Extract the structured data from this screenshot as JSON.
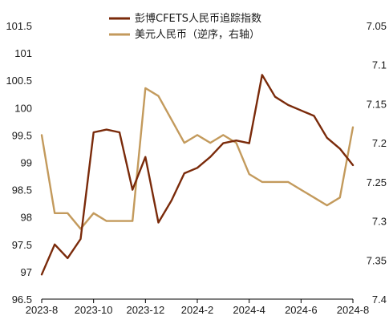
{
  "chart_data": {
    "type": "line",
    "title": "",
    "x": [
      "2023-08",
      "2023-08-15",
      "2023-09",
      "2023-09-15",
      "2023-10",
      "2023-10-15",
      "2023-11",
      "2023-11-15",
      "2023-12",
      "2023-12-15",
      "2024-01",
      "2024-01-15",
      "2024-02",
      "2024-02-15",
      "2024-03",
      "2024-03-15",
      "2024-04",
      "2024-04-15",
      "2024-05",
      "2024-05-15",
      "2024-06",
      "2024-06-15",
      "2024-07",
      "2024-07-15",
      "2024-08"
    ],
    "x_ticks": [
      "2023-8",
      "2023-10",
      "2023-12",
      "2024-2",
      "2024-4",
      "2024-6",
      "2024-8"
    ],
    "y_left": {
      "ticks": [
        "96.5",
        "97",
        "97.5",
        "98",
        "98.5",
        "99",
        "99.5",
        "100",
        "100.5",
        "101",
        "101.5"
      ],
      "range": [
        96.5,
        101.5
      ]
    },
    "y_right": {
      "ticks": [
        "7.05",
        "7.1",
        "7.15",
        "7.2",
        "7.25",
        "7.3",
        "7.35",
        "7.4"
      ],
      "range": [
        7.05,
        7.4
      ],
      "inverted": true
    },
    "series": [
      {
        "name": "彭博CFETS人民币追踪指数",
        "axis": "left",
        "color": "#7a2a0a",
        "values": [
          96.95,
          97.5,
          97.25,
          97.6,
          99.55,
          99.6,
          99.55,
          98.5,
          99.1,
          97.9,
          98.3,
          98.8,
          98.9,
          99.1,
          99.35,
          99.4,
          99.35,
          100.6,
          100.2,
          100.05,
          99.95,
          99.85,
          99.45,
          99.25,
          98.95
        ]
      },
      {
        "name": "美元人民币（逆序，右轴）",
        "axis": "right",
        "color": "#c39a5c",
        "values": [
          7.19,
          7.29,
          7.29,
          7.31,
          7.29,
          7.3,
          7.3,
          7.3,
          7.13,
          7.14,
          7.17,
          7.2,
          7.19,
          7.2,
          7.19,
          7.2,
          7.24,
          7.25,
          7.25,
          7.25,
          7.26,
          7.27,
          7.28,
          7.27,
          7.18
        ]
      }
    ],
    "legend_position": "top-center",
    "grid": false
  }
}
